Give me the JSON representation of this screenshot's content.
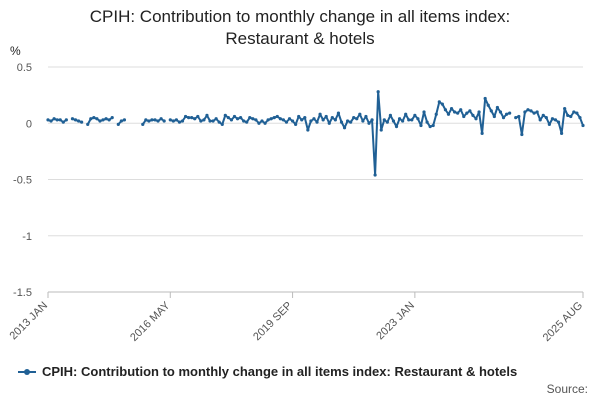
{
  "title_line1": "CPIH: Contribution to monthly change in all items index:",
  "title_line2": "Restaurant & hotels",
  "source_label": "Source:",
  "chart_data": {
    "type": "line",
    "title": "CPIH: Contribution to monthly change in all items index: Restaurant & hotels",
    "ylabel": "%",
    "xlabel": "",
    "ylim": [
      -1.5,
      0.5
    ],
    "yticks": [
      "0.5",
      "0",
      "-0.5",
      "-1",
      "-1.5"
    ],
    "xticks": [
      "2013 JAN",
      "2016 MAY",
      "2019 SEP",
      "2023 JAN",
      "2025 AUG"
    ],
    "grid": true,
    "legend_position": "bottom",
    "color": "#206095",
    "series": [
      {
        "name": "CPIH: Contribution to monthly change in all items index: Restaurant & hotels",
        "x_start": "2013 JAN",
        "x_end": "2025 AUG",
        "frequency": "monthly",
        "values": [
          0.03,
          0.02,
          0.04,
          0.03,
          0.03,
          0.01,
          0.03,
          null,
          0.04,
          0.03,
          0.02,
          0.01,
          null,
          -0.01,
          0.04,
          0.05,
          0.04,
          0.02,
          0.03,
          0.04,
          0.03,
          0.05,
          null,
          -0.01,
          0.02,
          0.03,
          null,
          null,
          null,
          null,
          null,
          -0.01,
          0.03,
          0.02,
          0.03,
          0.03,
          0.02,
          0.04,
          0.02,
          null,
          0.03,
          0.02,
          0.03,
          0.01,
          0.02,
          0.06,
          0.05,
          0.05,
          0.04,
          0.06,
          0.02,
          0.03,
          0.07,
          0.02,
          0.02,
          0.04,
          0.01,
          -0.01,
          0.07,
          0.05,
          0.03,
          0.06,
          0.04,
          0.05,
          0.02,
          0.01,
          0.05,
          0.04,
          0.03,
          0.0,
          0.02,
          0.0,
          0.03,
          0.04,
          0.05,
          0.06,
          0.04,
          0.03,
          0.01,
          0.04,
          0.02,
          -0.01,
          0.06,
          0.03,
          0.05,
          -0.06,
          0.02,
          0.04,
          0.01,
          0.08,
          0.03,
          0.06,
          0.0,
          0.05,
          0.03,
          0.09,
          0.01,
          -0.04,
          0.02,
          0.01,
          0.05,
          0.04,
          0.08,
          0.02,
          0.06,
          0.0,
          0.03,
          -0.46,
          0.28,
          -0.06,
          0.03,
          0.01,
          0.07,
          0.02,
          -0.03,
          0.04,
          0.02,
          0.08,
          0.03,
          0.03,
          0.07,
          0.04,
          -0.02,
          0.1,
          0.01,
          -0.03,
          -0.02,
          0.08,
          0.19,
          0.17,
          0.12,
          0.08,
          0.13,
          0.1,
          0.09,
          0.12,
          0.06,
          0.09,
          0.11,
          0.07,
          0.04,
          0.1,
          -0.09,
          0.22,
          0.16,
          0.11,
          0.06,
          0.14,
          0.1,
          0.05,
          0.08,
          0.09,
          null,
          0.05,
          0.06,
          -0.1,
          0.1,
          0.12,
          0.11,
          0.09,
          0.1,
          0.03,
          0.07,
          0.05,
          -0.01,
          0.04,
          0.03,
          0.01,
          -0.09,
          0.13,
          0.07,
          0.06,
          0.1,
          0.09,
          0.05,
          -0.02
        ]
      }
    ]
  }
}
